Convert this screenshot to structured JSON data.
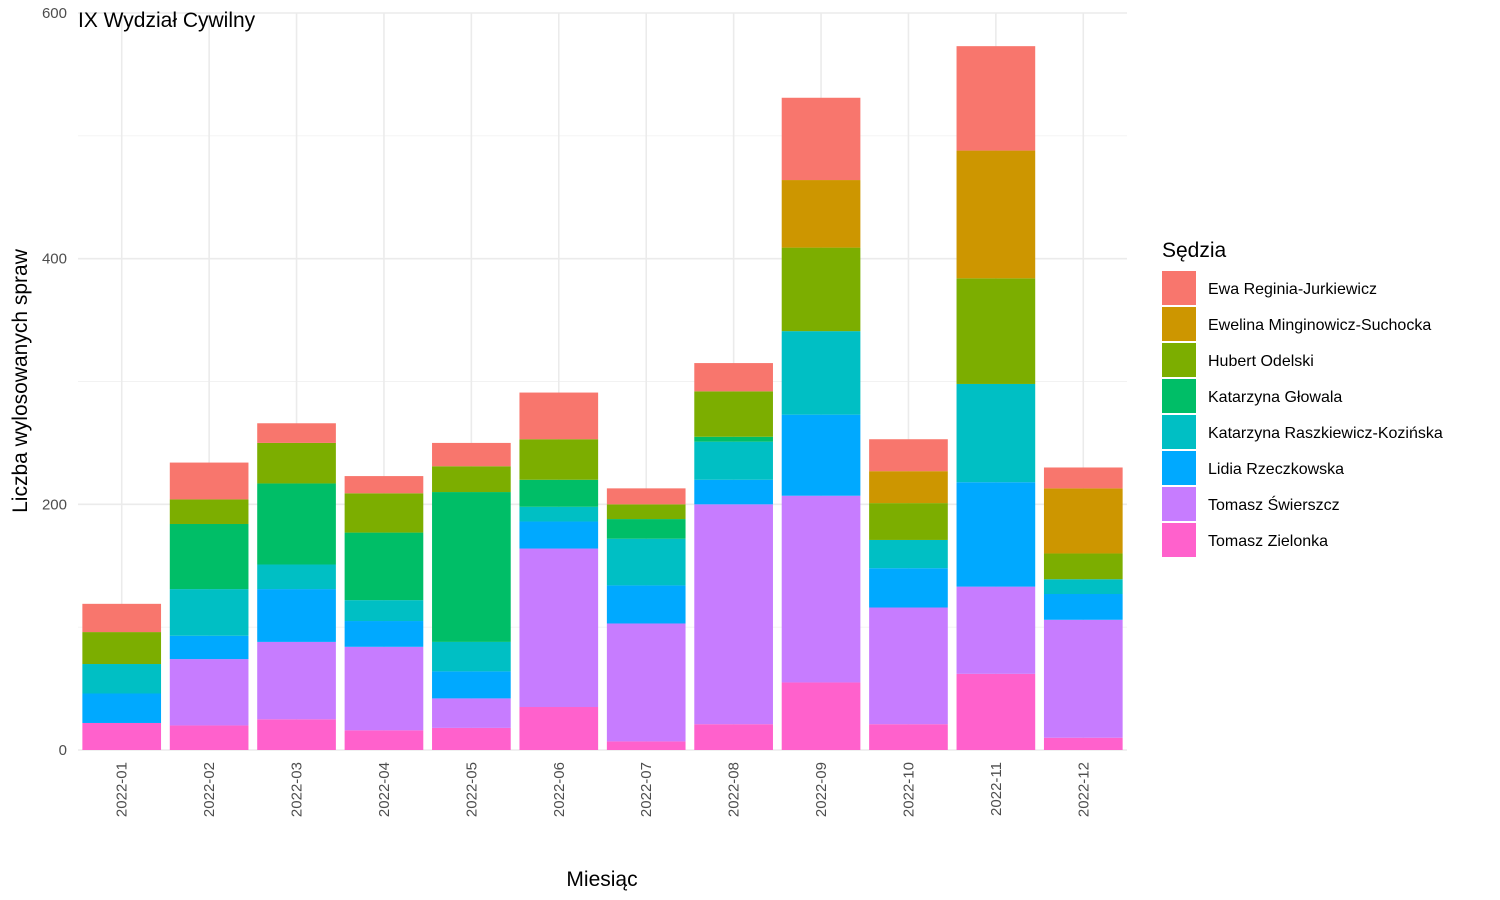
{
  "chart_data": {
    "type": "bar",
    "stacked": true,
    "title": "IX Wydział Cywilny",
    "xlabel": "Miesiąc",
    "ylabel": "Liczba wylosowanych spraw",
    "ylim": [
      0,
      600
    ],
    "yticks": [
      0,
      200,
      400,
      600
    ],
    "grid": true,
    "legend_position": "right",
    "legend_title": "Sędzia",
    "categories": [
      "2022-01",
      "2022-02",
      "2022-03",
      "2022-04",
      "2022-05",
      "2022-06",
      "2022-07",
      "2022-08",
      "2022-09",
      "2022-10",
      "2022-11",
      "2022-12"
    ],
    "series": [
      {
        "name": "Tomasz Zielonka",
        "color": "#FF61CC",
        "values": [
          22,
          20,
          25,
          16,
          18,
          35,
          7,
          21,
          55,
          21,
          62,
          10
        ]
      },
      {
        "name": "Tomasz Świerszcz",
        "color": "#C77CFF",
        "values": [
          0,
          54,
          63,
          68,
          24,
          129,
          96,
          179,
          152,
          95,
          71,
          96
        ]
      },
      {
        "name": "Lidia Rzeczkowska",
        "color": "#00A9FF",
        "values": [
          24,
          19,
          43,
          21,
          22,
          22,
          31,
          20,
          66,
          32,
          85,
          21
        ]
      },
      {
        "name": "Katarzyna Raszkiewicz-Kozińska",
        "color": "#00BFC4",
        "values": [
          24,
          38,
          20,
          17,
          24,
          12,
          38,
          31,
          68,
          23,
          80,
          12
        ]
      },
      {
        "name": "Katarzyna Głowala",
        "color": "#00BE67",
        "values": [
          0,
          53,
          66,
          55,
          122,
          22,
          16,
          4,
          0,
          0,
          0,
          0
        ]
      },
      {
        "name": "Hubert Odelski",
        "color": "#7CAE00",
        "values": [
          26,
          20,
          33,
          32,
          21,
          33,
          12,
          37,
          68,
          30,
          86,
          21
        ]
      },
      {
        "name": "Ewelina Minginowicz-Suchocka",
        "color": "#CD9600",
        "values": [
          0,
          0,
          0,
          0,
          0,
          0,
          0,
          0,
          55,
          26,
          104,
          53
        ]
      },
      {
        "name": "Ewa Reginia-Jurkiewicz",
        "color": "#F8766D",
        "values": [
          23,
          30,
          16,
          14,
          19,
          38,
          13,
          23,
          67,
          26,
          85,
          17
        ]
      }
    ],
    "legend_order": [
      "Ewa Reginia-Jurkiewicz",
      "Ewelina Minginowicz-Suchocka",
      "Hubert Odelski",
      "Katarzyna Głowala",
      "Katarzyna Raszkiewicz-Kozińska",
      "Lidia Rzeczkowska",
      "Tomasz Świerszcz",
      "Tomasz Zielonka"
    ]
  }
}
